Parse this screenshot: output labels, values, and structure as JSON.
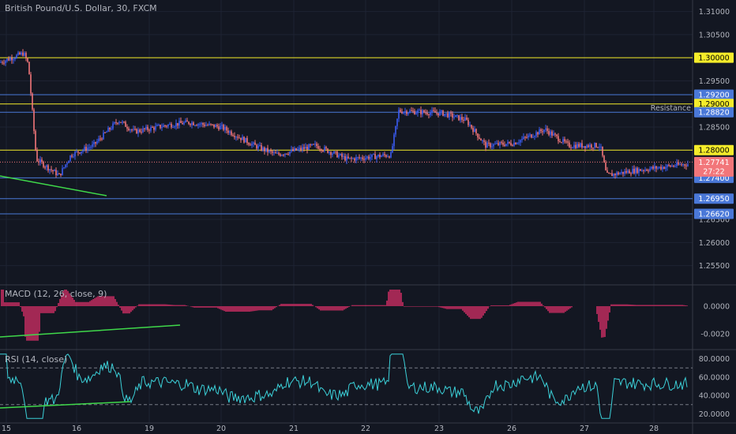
{
  "title": "British Pound/U.S. Dollar, 30, FXCM",
  "colors": {
    "background": "#131722",
    "up": "#3a5cf5",
    "down": "#f2767a",
    "level_yellow": "#f5ec2a",
    "level_blue": "#4a78d8",
    "trendline": "#3fd84a",
    "macd_hist": "#e0306a",
    "rsi": "#3bd0d8",
    "current_price": "#f2767a"
  },
  "price_axis": {
    "ticks": [
      "1.31000",
      "1.30500",
      "1.29500",
      "1.28500",
      "1.26500",
      "1.26000",
      "1.25500"
    ],
    "range": [
      1.251,
      1.3125
    ]
  },
  "x_labels": [
    "15",
    "16",
    "19",
    "20",
    "21",
    "22",
    "23",
    "26",
    "27",
    "28"
  ],
  "levels": [
    {
      "label": "1.30000",
      "value": 1.3,
      "color": "yellow"
    },
    {
      "label": "1.29200",
      "value": 1.292,
      "color": "blue"
    },
    {
      "label": "1.29000",
      "value": 1.29,
      "color": "yellow"
    },
    {
      "label": "1.28820",
      "value": 1.2882,
      "color": "blue"
    },
    {
      "label": "1.28000",
      "value": 1.28,
      "color": "yellow"
    },
    {
      "label": "1.27400",
      "value": 1.274,
      "color": "blue"
    },
    {
      "label": "1.26950",
      "value": 1.2695,
      "color": "blue"
    },
    {
      "label": "1.26620",
      "value": 1.2662,
      "color": "blue"
    }
  ],
  "annotation": {
    "text": "Resistance",
    "value": 1.2882
  },
  "current_price": {
    "label": "1.27741",
    "value": 1.27741,
    "countdown": "27:22"
  },
  "chart_data": [
    {
      "type": "line",
      "title": "British Pound/U.S. Dollar, 30, FXCM",
      "x": [
        "15",
        "15",
        "15",
        "15",
        "16",
        "16",
        "16",
        "19",
        "19",
        "19",
        "20",
        "20",
        "20",
        "21",
        "21",
        "22",
        "22",
        "22",
        "23",
        "23",
        "26",
        "26",
        "26",
        "27",
        "27",
        "27",
        "28",
        "28"
      ],
      "series": [
        {
          "values": [
            1.299,
            1.301,
            1.2985,
            1.278,
            1.2745,
            1.279,
            1.281,
            1.2865,
            1.284,
            1.2855,
            1.286,
            1.285,
            1.281,
            1.279,
            1.281,
            1.278,
            1.279,
            1.2885,
            1.288,
            1.2865,
            1.281,
            1.2815,
            1.2845,
            1.281,
            1.281,
            1.2745,
            1.2755,
            1.277
          ]
        }
      ],
      "ylim": [
        1.251,
        1.3125
      ]
    },
    {
      "type": "bar",
      "title": "MACD (12, 26, close, 9)",
      "yticks": [
        "0.0000",
        "-0.0020"
      ]
    },
    {
      "type": "line",
      "title": "RSI (14, close)",
      "yticks": [
        "80.0000",
        "60.0000",
        "40.0000",
        "20.0000"
      ],
      "ylim": [
        10,
        90
      ]
    }
  ]
}
